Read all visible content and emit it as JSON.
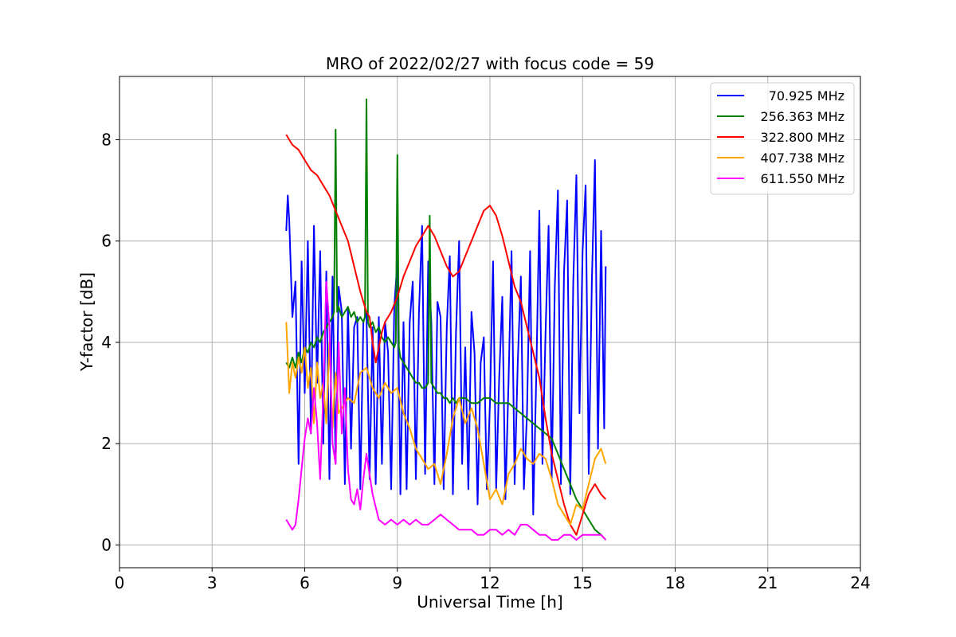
{
  "chart_data": {
    "type": "line",
    "title": "MRO of 2022/02/27 with focus code = 59",
    "xlabel": "Universal Time [h]",
    "ylabel": "Y-factor [dB]",
    "xlim": [
      0,
      24
    ],
    "ylim": [
      -0.45,
      9.25
    ],
    "xticks": [
      0,
      3,
      6,
      9,
      12,
      15,
      18,
      21,
      24
    ],
    "yticks": [
      0,
      2,
      4,
      6,
      8
    ],
    "grid": true,
    "legend_position": "top-right",
    "series": [
      {
        "name": "70.925 MHz",
        "color": "#0000ff",
        "x": [
          5.4,
          5.45,
          5.5,
          5.55,
          5.6,
          5.7,
          5.8,
          5.9,
          6.0,
          6.1,
          6.2,
          6.3,
          6.4,
          6.5,
          6.6,
          6.7,
          6.8,
          6.9,
          7.0,
          7.1,
          7.2,
          7.3,
          7.4,
          7.5,
          7.6,
          7.7,
          7.8,
          7.9,
          8.0,
          8.1,
          8.2,
          8.3,
          8.4,
          8.5,
          8.6,
          8.7,
          8.8,
          8.9,
          9.0,
          9.1,
          9.2,
          9.3,
          9.4,
          9.5,
          9.6,
          9.7,
          9.8,
          9.9,
          10.0,
          10.1,
          10.2,
          10.3,
          10.4,
          10.5,
          10.6,
          10.7,
          10.8,
          10.9,
          11.0,
          11.1,
          11.2,
          11.3,
          11.4,
          11.5,
          11.6,
          11.7,
          11.8,
          11.9,
          12.0,
          12.1,
          12.2,
          12.3,
          12.4,
          12.5,
          12.6,
          12.7,
          12.8,
          12.9,
          13.0,
          13.1,
          13.2,
          13.3,
          13.4,
          13.5,
          13.6,
          13.7,
          13.8,
          13.9,
          14.0,
          14.1,
          14.2,
          14.3,
          14.4,
          14.5,
          14.6,
          14.7,
          14.8,
          14.9,
          15.0,
          15.1,
          15.2,
          15.3,
          15.4,
          15.5,
          15.6,
          15.7,
          15.75
        ],
        "y": [
          6.2,
          6.9,
          6.4,
          5.4,
          4.5,
          5.2,
          1.6,
          5.6,
          3.0,
          6.0,
          2.2,
          6.3,
          3.2,
          5.8,
          2.0,
          5.4,
          1.3,
          5.3,
          1.6,
          5.1,
          4.6,
          1.2,
          4.7,
          1.9,
          4.3,
          4.5,
          1.1,
          4.4,
          4.6,
          1.3,
          4.3,
          1.2,
          4.5,
          1.6,
          4.4,
          3.8,
          1.1,
          4.7,
          5.6,
          1.0,
          4.4,
          1.1,
          4.4,
          5.2,
          1.3,
          4.6,
          6.3,
          1.4,
          5.6,
          4.4,
          1.2,
          4.8,
          4.5,
          1.1,
          4.3,
          5.7,
          1.0,
          4.2,
          6.0,
          1.6,
          3.9,
          1.1,
          4.6,
          3.8,
          0.8,
          3.6,
          4.1,
          1.1,
          2.8,
          5.6,
          1.1,
          3.3,
          4.9,
          0.9,
          3.2,
          5.8,
          1.2,
          3.6,
          5.3,
          1.1,
          2.6,
          5.8,
          0.6,
          3.3,
          6.6,
          1.6,
          4.2,
          6.3,
          1.3,
          5.1,
          7.0,
          1.2,
          5.4,
          6.8,
          1.0,
          5.2,
          7.3,
          2.6,
          5.8,
          7.1,
          1.4,
          5.2,
          7.6,
          1.9,
          6.2,
          2.3,
          5.5
        ]
      },
      {
        "name": "256.363 MHz",
        "color": "#008000",
        "x": [
          5.4,
          5.5,
          5.6,
          5.7,
          5.8,
          5.9,
          6.0,
          6.1,
          6.2,
          6.3,
          6.4,
          6.5,
          6.6,
          6.7,
          6.8,
          6.9,
          6.95,
          7.0,
          7.05,
          7.1,
          7.2,
          7.3,
          7.4,
          7.5,
          7.6,
          7.7,
          7.8,
          7.9,
          7.95,
          8.0,
          8.05,
          8.1,
          8.2,
          8.3,
          8.4,
          8.5,
          8.6,
          8.7,
          8.8,
          8.9,
          8.95,
          9.0,
          9.05,
          9.1,
          9.2,
          9.3,
          9.4,
          9.5,
          9.6,
          9.7,
          9.8,
          9.9,
          10.0,
          10.05,
          10.1,
          10.2,
          10.3,
          10.4,
          10.5,
          10.6,
          10.7,
          10.8,
          10.9,
          11.0,
          11.2,
          11.4,
          11.6,
          11.8,
          12.0,
          12.2,
          12.4,
          12.6,
          12.8,
          13.0,
          13.2,
          13.4,
          13.6,
          13.8,
          14.0,
          14.2,
          14.4,
          14.6,
          14.8,
          15.0,
          15.2,
          15.4,
          15.6,
          15.75
        ],
        "y": [
          3.6,
          3.5,
          3.7,
          3.5,
          3.8,
          3.6,
          3.9,
          3.8,
          4.0,
          3.9,
          4.1,
          4.0,
          4.2,
          4.3,
          4.4,
          4.5,
          4.6,
          8.2,
          4.6,
          4.7,
          4.5,
          4.6,
          4.7,
          4.5,
          4.6,
          4.4,
          4.5,
          4.4,
          4.5,
          8.8,
          4.4,
          4.3,
          4.4,
          4.2,
          4.3,
          4.1,
          4.0,
          4.1,
          4.0,
          3.9,
          4.0,
          7.7,
          3.9,
          3.7,
          3.6,
          3.5,
          3.4,
          3.3,
          3.2,
          3.2,
          3.1,
          3.1,
          3.2,
          6.5,
          3.2,
          3.1,
          3.0,
          3.0,
          2.9,
          2.9,
          2.8,
          2.9,
          2.8,
          2.9,
          2.9,
          2.8,
          2.8,
          2.9,
          2.9,
          2.8,
          2.8,
          2.8,
          2.7,
          2.6,
          2.5,
          2.4,
          2.3,
          2.2,
          2.1,
          1.8,
          1.5,
          1.2,
          0.9,
          0.7,
          0.5,
          0.3,
          0.2,
          0.1
        ]
      },
      {
        "name": "322.800 MHz",
        "color": "#ff0000",
        "x": [
          5.4,
          5.5,
          5.6,
          5.8,
          6.0,
          6.2,
          6.4,
          6.6,
          6.8,
          7.0,
          7.2,
          7.4,
          7.6,
          7.8,
          8.0,
          8.1,
          8.2,
          8.3,
          8.4,
          8.5,
          8.6,
          8.8,
          9.0,
          9.2,
          9.4,
          9.6,
          9.8,
          10.0,
          10.2,
          10.4,
          10.6,
          10.8,
          11.0,
          11.2,
          11.4,
          11.6,
          11.8,
          12.0,
          12.2,
          12.4,
          12.6,
          12.8,
          13.0,
          13.2,
          13.4,
          13.6,
          13.8,
          14.0,
          14.2,
          14.4,
          14.6,
          14.8,
          15.0,
          15.2,
          15.4,
          15.6,
          15.75
        ],
        "y": [
          8.1,
          8.0,
          7.9,
          7.8,
          7.6,
          7.4,
          7.3,
          7.1,
          6.9,
          6.6,
          6.3,
          6.0,
          5.5,
          5.0,
          4.6,
          4.5,
          4.0,
          3.6,
          3.9,
          4.2,
          4.4,
          4.6,
          4.9,
          5.3,
          5.6,
          5.9,
          6.1,
          6.3,
          6.1,
          5.8,
          5.5,
          5.3,
          5.4,
          5.7,
          6.0,
          6.3,
          6.6,
          6.7,
          6.5,
          6.1,
          5.6,
          5.1,
          4.8,
          4.3,
          3.8,
          3.3,
          2.5,
          1.8,
          1.3,
          0.8,
          0.4,
          0.2,
          0.6,
          1.0,
          1.2,
          1.0,
          0.9
        ]
      },
      {
        "name": "407.738 MHz",
        "color": "#ffa500",
        "x": [
          5.4,
          5.5,
          5.6,
          5.7,
          5.8,
          5.9,
          6.0,
          6.1,
          6.2,
          6.3,
          6.4,
          6.5,
          6.6,
          6.7,
          6.8,
          6.9,
          7.0,
          7.1,
          7.2,
          7.4,
          7.6,
          7.8,
          8.0,
          8.2,
          8.4,
          8.6,
          8.8,
          9.0,
          9.2,
          9.4,
          9.6,
          9.8,
          10.0,
          10.2,
          10.4,
          10.6,
          10.8,
          11.0,
          11.2,
          11.4,
          11.6,
          11.8,
          12.0,
          12.2,
          12.4,
          12.6,
          12.8,
          13.0,
          13.2,
          13.4,
          13.6,
          13.8,
          14.0,
          14.2,
          14.4,
          14.6,
          14.8,
          15.0,
          15.2,
          15.4,
          15.6,
          15.75
        ],
        "y": [
          4.4,
          3.0,
          3.6,
          3.3,
          3.7,
          3.4,
          3.9,
          3.1,
          3.5,
          2.4,
          3.6,
          2.9,
          3.2,
          2.4,
          4.0,
          2.3,
          3.4,
          2.6,
          2.7,
          2.9,
          2.8,
          3.4,
          3.5,
          3.1,
          2.9,
          3.2,
          3.0,
          3.1,
          2.6,
          2.3,
          1.9,
          1.7,
          1.5,
          1.6,
          1.2,
          1.8,
          2.5,
          2.9,
          2.4,
          2.7,
          2.3,
          1.6,
          0.9,
          1.1,
          0.8,
          1.4,
          1.6,
          1.9,
          1.7,
          1.6,
          1.8,
          1.7,
          1.3,
          0.8,
          0.6,
          0.4,
          0.8,
          0.7,
          1.2,
          1.7,
          1.9,
          1.6
        ]
      },
      {
        "name": "611.550 MHz",
        "color": "#ff00ff",
        "x": [
          5.4,
          5.5,
          5.6,
          5.7,
          5.8,
          5.9,
          6.0,
          6.1,
          6.2,
          6.3,
          6.4,
          6.5,
          6.6,
          6.7,
          6.8,
          6.9,
          7.0,
          7.1,
          7.2,
          7.3,
          7.4,
          7.5,
          7.6,
          7.7,
          7.8,
          7.9,
          8.0,
          8.2,
          8.4,
          8.6,
          8.8,
          9.0,
          9.2,
          9.4,
          9.6,
          9.8,
          10.0,
          10.2,
          10.4,
          10.6,
          10.8,
          11.0,
          11.2,
          11.4,
          11.6,
          11.8,
          12.0,
          12.2,
          12.4,
          12.6,
          12.8,
          13.0,
          13.2,
          13.4,
          13.6,
          13.8,
          14.0,
          14.2,
          14.4,
          14.6,
          14.8,
          15.0,
          15.2,
          15.4,
          15.6,
          15.75
        ],
        "y": [
          0.5,
          0.4,
          0.3,
          0.4,
          0.9,
          1.5,
          2.1,
          2.5,
          2.2,
          3.1,
          2.4,
          1.3,
          3.0,
          5.2,
          4.3,
          2.0,
          1.6,
          4.0,
          2.2,
          3.1,
          1.5,
          0.9,
          0.8,
          1.1,
          0.7,
          1.3,
          1.8,
          1.0,
          0.5,
          0.4,
          0.5,
          0.4,
          0.5,
          0.4,
          0.5,
          0.4,
          0.4,
          0.5,
          0.6,
          0.5,
          0.4,
          0.3,
          0.3,
          0.3,
          0.2,
          0.2,
          0.3,
          0.3,
          0.2,
          0.3,
          0.2,
          0.4,
          0.4,
          0.3,
          0.2,
          0.2,
          0.1,
          0.1,
          0.2,
          0.2,
          0.1,
          0.2,
          0.2,
          0.2,
          0.2,
          0.1
        ]
      }
    ]
  }
}
